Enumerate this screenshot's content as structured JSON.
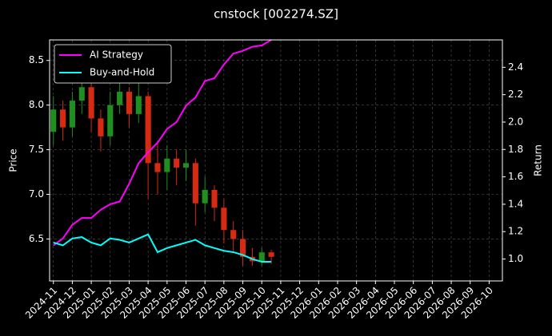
{
  "chart_data": {
    "type": "candlestick",
    "title": "cnstock [002274.SZ]",
    "ylabel": "Price",
    "y2label": "Return",
    "x": [
      0,
      0.5,
      1,
      1.5,
      2,
      2.5,
      3,
      3.5,
      4,
      4.5,
      5,
      5.5,
      6,
      6.5,
      7,
      7.5,
      8,
      8.5,
      9,
      9.5,
      10,
      10.5,
      11,
      11.5
    ],
    "open": [
      7.7,
      7.95,
      7.75,
      8.05,
      8.2,
      7.85,
      7.65,
      8.0,
      8.15,
      7.9,
      8.1,
      7.35,
      7.25,
      7.4,
      7.3,
      7.35,
      6.9,
      7.05,
      6.85,
      6.6,
      6.5,
      6.3,
      6.25,
      6.35
    ],
    "high": [
      8.1,
      8.05,
      8.15,
      8.3,
      8.25,
      7.95,
      8.15,
      8.3,
      8.2,
      8.3,
      8.15,
      7.6,
      7.55,
      7.5,
      7.5,
      7.4,
      7.2,
      7.1,
      6.95,
      6.7,
      6.6,
      6.4,
      6.4,
      6.38
    ],
    "low": [
      7.55,
      7.6,
      7.65,
      7.9,
      7.7,
      7.48,
      7.55,
      7.9,
      7.75,
      7.8,
      6.95,
      7.0,
      7.05,
      7.1,
      7.15,
      6.65,
      6.8,
      6.7,
      6.45,
      6.35,
      6.2,
      6.2,
      6.2,
      6.22
    ],
    "close": [
      7.95,
      7.75,
      8.05,
      8.2,
      7.85,
      7.65,
      8.0,
      8.15,
      7.9,
      8.1,
      7.35,
      7.25,
      7.4,
      7.3,
      7.35,
      6.9,
      7.05,
      6.85,
      6.6,
      6.5,
      6.3,
      6.25,
      6.35,
      6.3
    ],
    "up_color": "#1f8f1f",
    "down_color": "#d62a12",
    "series": [
      {
        "name": "AI Strategy",
        "color": "#ff00ff",
        "axis": "y2",
        "values": [
          1.1,
          1.15,
          1.25,
          1.3,
          1.3,
          1.36,
          1.4,
          1.42,
          1.55,
          1.7,
          1.78,
          1.85,
          1.95,
          2.0,
          2.12,
          2.18,
          2.3,
          2.32,
          2.42,
          2.5,
          2.52,
          2.55,
          2.56,
          2.6
        ]
      },
      {
        "name": "Buy-and-Hold",
        "color": "#00ffff",
        "axis": "y2",
        "values": [
          1.12,
          1.1,
          1.15,
          1.16,
          1.12,
          1.1,
          1.15,
          1.14,
          1.12,
          1.15,
          1.18,
          1.05,
          1.08,
          1.1,
          1.12,
          1.14,
          1.1,
          1.08,
          1.06,
          1.05,
          1.03,
          1.0,
          0.98,
          0.98
        ]
      }
    ],
    "xlim": [
      -0.2,
      23.7
    ],
    "xticks": [
      {
        "value": 0,
        "label": "2024-11"
      },
      {
        "value": 1,
        "label": "2024-12"
      },
      {
        "value": 2,
        "label": "2025-01"
      },
      {
        "value": 3,
        "label": "2025-02"
      },
      {
        "value": 4,
        "label": "2025-03"
      },
      {
        "value": 5,
        "label": "2025-04"
      },
      {
        "value": 6,
        "label": "2025-05"
      },
      {
        "value": 7,
        "label": "2025-06"
      },
      {
        "value": 8,
        "label": "2025-07"
      },
      {
        "value": 9,
        "label": "2025-08"
      },
      {
        "value": 10,
        "label": "2025-09"
      },
      {
        "value": 11,
        "label": "2025-10"
      },
      {
        "value": 12,
        "label": "2025-11"
      },
      {
        "value": 13,
        "label": "2025-12"
      },
      {
        "value": 14,
        "label": "2026-01"
      },
      {
        "value": 15,
        "label": "2026-02"
      },
      {
        "value": 16,
        "label": "2026-03"
      },
      {
        "value": 17,
        "label": "2026-04"
      },
      {
        "value": 18,
        "label": "2026-05"
      },
      {
        "value": 19,
        "label": "2026-06"
      },
      {
        "value": 20,
        "label": "2026-07"
      },
      {
        "value": 21,
        "label": "2026-08"
      },
      {
        "value": 22,
        "label": "2026-09"
      },
      {
        "value": 23,
        "label": "2026-10"
      }
    ],
    "ylim": [
      6.03,
      8.73
    ],
    "yticks": [
      6.5,
      {
        "value": 7,
        "label": "7.0"
      },
      7.5,
      {
        "value": 8,
        "label": "8.0"
      },
      8.5
    ],
    "y2lim": [
      0.84,
      2.6
    ],
    "y2ticks": [
      {
        "value": 1,
        "label": "1.0"
      },
      1.2,
      1.4,
      1.6,
      1.8,
      {
        "value": 2,
        "label": "2.0"
      },
      2.2,
      2.4
    ],
    "grid": true,
    "legend": "upper left"
  }
}
